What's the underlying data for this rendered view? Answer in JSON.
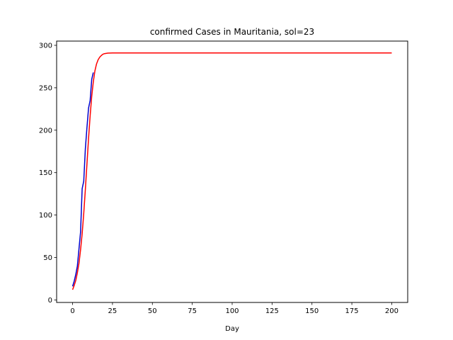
{
  "chart_data": {
    "type": "line",
    "title": "confirmed Cases in Mauritania, sol=23",
    "xlabel": "Day",
    "ylabel": "",
    "xlim": [
      -10,
      210
    ],
    "ylim": [
      -3,
      305
    ],
    "xticks": [
      0,
      25,
      50,
      75,
      100,
      125,
      150,
      175,
      200
    ],
    "yticks": [
      0,
      50,
      100,
      150,
      200,
      250,
      300
    ],
    "grid": false,
    "legend": "none",
    "series": [
      {
        "color": "#ff0000",
        "x": [
          0,
          1,
          2,
          3,
          4,
          5,
          6,
          7,
          8,
          9,
          10,
          11,
          12,
          13,
          14,
          15,
          16,
          17,
          18,
          19,
          20,
          22,
          25,
          30,
          40,
          60,
          100,
          150,
          200
        ],
        "y": [
          12,
          17,
          23,
          32,
          43,
          59,
          78,
          102,
          130,
          160,
          190,
          217,
          240,
          257,
          270,
          278,
          283,
          286,
          288,
          289.5,
          290.2,
          290.8,
          291,
          291,
          291,
          291,
          291,
          291,
          291
        ]
      },
      {
        "color": "#0000cc",
        "x": [
          0,
          1,
          2,
          3,
          4,
          5,
          6,
          7,
          8,
          9,
          10,
          11,
          12,
          13
        ],
        "y": [
          16,
          22,
          30,
          40,
          60,
          80,
          131,
          140,
          178,
          203,
          226,
          235,
          260,
          268
        ]
      }
    ]
  }
}
